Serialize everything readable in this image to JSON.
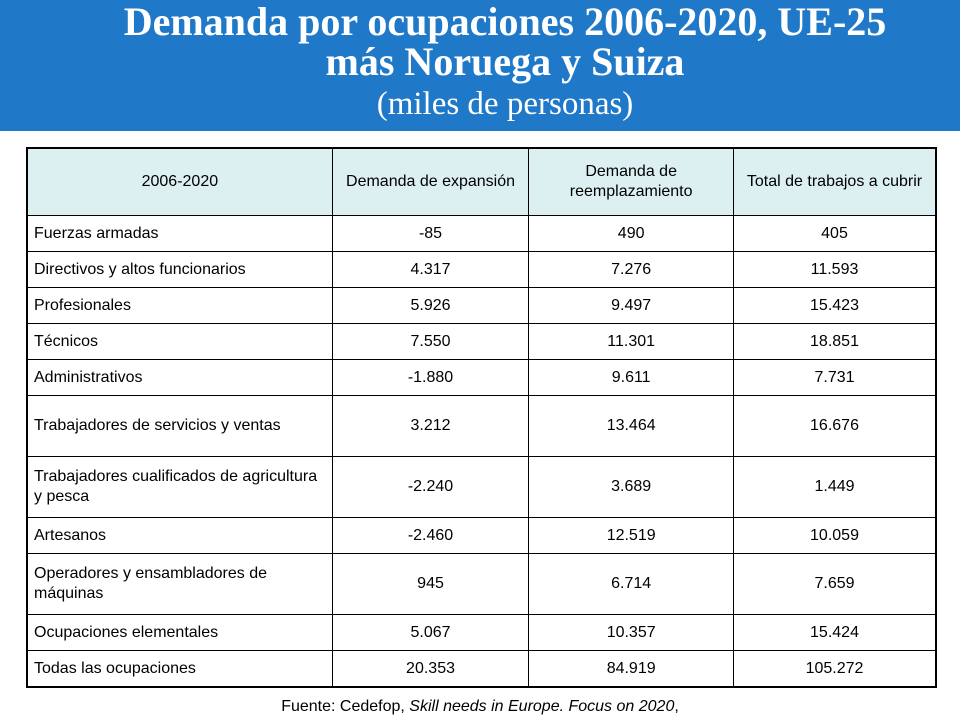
{
  "header": {
    "title_line1": "Demanda por ocupaciones 2006-2020, UE-25",
    "title_line2": "más Noruega y Suiza",
    "subtitle": "(miles de personas)",
    "background_color": "#1f78c8"
  },
  "table": {
    "header_background": "#dcf0f2",
    "columns": [
      "2006-2020",
      "Demanda de expansión",
      "Demanda de reemplazamiento",
      "Total de trabajos a cubrir"
    ],
    "rows": [
      {
        "label": "Fuerzas armadas",
        "expansion": "-85",
        "reemplazamiento": "490",
        "total": "405"
      },
      {
        "label": "Directivos y altos funcionarios",
        "expansion": "4.317",
        "reemplazamiento": "7.276",
        "total": "11.593"
      },
      {
        "label": "Profesionales",
        "expansion": "5.926",
        "reemplazamiento": "9.497",
        "total": "15.423"
      },
      {
        "label": "Técnicos",
        "expansion": "7.550",
        "reemplazamiento": "11.301",
        "total": "18.851"
      },
      {
        "label": "Administrativos",
        "expansion": "-1.880",
        "reemplazamiento": "9.611",
        "total": "7.731"
      },
      {
        "label": "Trabajadores de servicios y ventas",
        "expansion": "3.212",
        "reemplazamiento": "13.464",
        "total": "16.676"
      },
      {
        "label": "Trabajadores cualificados de agricultura y pesca",
        "expansion": "-2.240",
        "reemplazamiento": "3.689",
        "total": "1.449"
      },
      {
        "label": "Artesanos",
        "expansion": "-2.460",
        "reemplazamiento": "12.519",
        "total": "10.059"
      },
      {
        "label": "Operadores y ensambladores de máquinas",
        "expansion": "945",
        "reemplazamiento": "6.714",
        "total": "7.659"
      },
      {
        "label": "Ocupaciones elementales",
        "expansion": "5.067",
        "reemplazamiento": "10.357",
        "total": "15.424"
      },
      {
        "label": "Todas las ocupaciones",
        "expansion": "20.353",
        "reemplazamiento": "84.919",
        "total": "105.272"
      }
    ]
  },
  "footer": {
    "source_prefix": "Fuente: Cedefop, ",
    "source_title": "Skill needs in Europe. Focus on 2020",
    "source_suffix": ","
  }
}
